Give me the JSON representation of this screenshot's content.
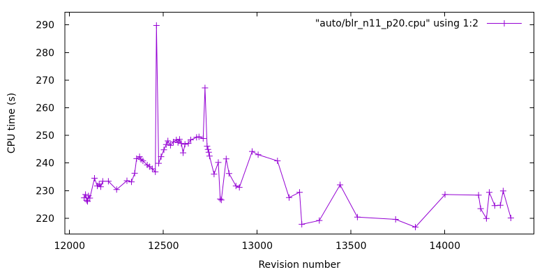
{
  "figure": {
    "background": "#ffffff",
    "border_color": "#000000",
    "text_color": "#000000"
  },
  "chart_data": {
    "type": "line",
    "title": "",
    "xlabel": "Revision number",
    "ylabel": "CPU time (s)",
    "grid": false,
    "legend_position": "top-right-inside",
    "legend": [
      {
        "label": "\"auto/blr_n11_p20.cpu\" using 1:2",
        "color": "#9400d3",
        "marker": "plus"
      }
    ],
    "xlim": [
      11975,
      14475
    ],
    "ylim": [
      214.3,
      294.6
    ],
    "xticks": [
      12000,
      12500,
      13000,
      13500,
      14000
    ],
    "yticks": [
      220,
      230,
      240,
      250,
      260,
      270,
      280,
      290
    ],
    "series": [
      {
        "name": "\"auto/blr_n11_p20.cpu\" using 1:2",
        "color": "#9400d3",
        "marker": "plus",
        "x": [
          12078,
          12085,
          12091,
          12096,
          12101,
          12108,
          12133,
          12148,
          12158,
          12166,
          12177,
          12207,
          12251,
          12306,
          12330,
          12347,
          12357,
          12373,
          12381,
          12391,
          12414,
          12426,
          12441,
          12457,
          12463,
          12475,
          12488,
          12503,
          12515,
          12524,
          12538,
          12553,
          12569,
          12578,
          12586,
          12596,
          12605,
          12615,
          12633,
          12646,
          12677,
          12690,
          12712,
          12722,
          12733,
          12738,
          12742,
          12746,
          12770,
          12793,
          12803,
          12809,
          12835,
          12850,
          12887,
          12905,
          12973,
          13005,
          13108,
          13170,
          13226,
          13238,
          13331,
          13442,
          13534,
          13738,
          13843,
          14001,
          14180,
          14191,
          14222,
          14237,
          14266,
          14296,
          14311,
          14352
        ],
        "y": [
          227.4,
          228.6,
          226.5,
          226.1,
          228.1,
          227.3,
          234.5,
          231.7,
          232.4,
          231.4,
          233.4,
          233.4,
          230.4,
          233.6,
          233.2,
          236.3,
          241.6,
          242.3,
          241.3,
          240.8,
          239.3,
          238.7,
          237.9,
          236.8,
          289.8,
          239.9,
          242.3,
          244.8,
          246.7,
          248.0,
          246.4,
          247.6,
          248.4,
          247.4,
          248.6,
          247.1,
          243.7,
          246.8,
          247.1,
          248.4,
          249.3,
          249.5,
          248.9,
          267.2,
          246.1,
          244.9,
          243.9,
          242.5,
          236.0,
          240.2,
          227.0,
          226.6,
          241.5,
          236.2,
          231.7,
          231.2,
          244.2,
          243.0,
          240.8,
          227.5,
          229.4,
          217.8,
          219.2,
          232.1,
          220.4,
          219.6,
          216.8,
          228.6,
          228.4,
          223.5,
          219.9,
          229.4,
          224.6,
          224.7,
          229.9,
          220.1
        ]
      }
    ]
  }
}
